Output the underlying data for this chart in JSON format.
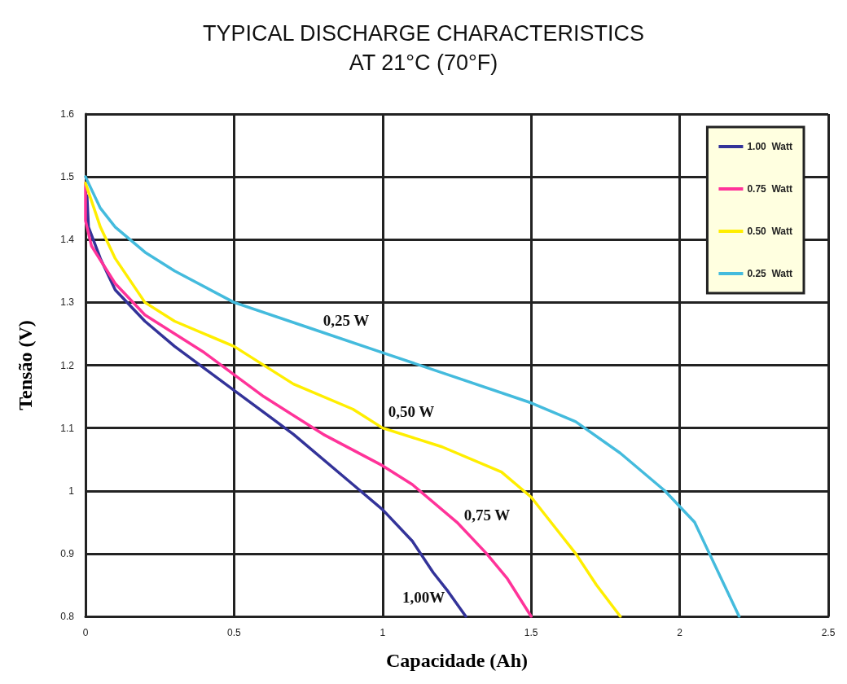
{
  "chart_data": {
    "type": "line",
    "title": "TYPICAL DISCHARGE CHARACTERISTICS\nAT 21°C (70°F)",
    "xlabel": "Capacidade (Ah)",
    "ylabel": "Tensão (V)",
    "xlim": [
      0,
      2.5
    ],
    "xticks": [
      0,
      0.5,
      1,
      1.5,
      2,
      2.5
    ],
    "ylim": [
      0.8,
      1.6
    ],
    "yticks": [
      0.8,
      0.9,
      1,
      1.1,
      1.2,
      1.3,
      1.4,
      1.5,
      1.6
    ],
    "grid": true,
    "legend": "top right",
    "marker": "none",
    "line_style": "solid",
    "series": [
      {
        "name": "1.00  Watt",
        "color": "#333399",
        "x": [
          0.005,
          0.01,
          0.05,
          0.1,
          0.2,
          0.3,
          0.5,
          0.7,
          0.9,
          1.0,
          1.1,
          1.17,
          1.22,
          1.28
        ],
        "values": [
          1.47,
          1.42,
          1.37,
          1.32,
          1.27,
          1.23,
          1.16,
          1.09,
          1.01,
          0.97,
          0.92,
          0.87,
          0.84,
          0.8
        ]
      },
      {
        "name": "0.75  Watt",
        "color": "#ff3399",
        "x": [
          0,
          0,
          0.02,
          0.1,
          0.2,
          0.4,
          0.6,
          0.8,
          1.0,
          1.1,
          1.25,
          1.35,
          1.42,
          1.5
        ],
        "values": [
          1.49,
          1.43,
          1.39,
          1.33,
          1.28,
          1.22,
          1.15,
          1.09,
          1.04,
          1.01,
          0.95,
          0.9,
          0.86,
          0.8
        ]
      },
      {
        "name": "0.50  Watt",
        "color": "#ffee00",
        "x": [
          0,
          0.05,
          0.1,
          0.2,
          0.3,
          0.5,
          0.7,
          0.9,
          1.0,
          1.2,
          1.4,
          1.5,
          1.6,
          1.65,
          1.72,
          1.8
        ],
        "values": [
          1.49,
          1.42,
          1.37,
          1.3,
          1.27,
          1.23,
          1.17,
          1.13,
          1.1,
          1.07,
          1.03,
          0.99,
          0.93,
          0.9,
          0.85,
          0.8
        ]
      },
      {
        "name": "0.25  Watt",
        "color": "#44bbdd",
        "x": [
          0,
          0.05,
          0.1,
          0.2,
          0.3,
          0.5,
          0.75,
          1.0,
          1.25,
          1.5,
          1.65,
          1.8,
          1.95,
          2.05,
          2.1,
          2.15,
          2.2
        ],
        "values": [
          1.5,
          1.45,
          1.42,
          1.38,
          1.35,
          1.3,
          1.26,
          1.22,
          1.18,
          1.14,
          1.11,
          1.06,
          1.0,
          0.95,
          0.9,
          0.85,
          0.8
        ]
      }
    ],
    "annotations": [
      "0,25 W",
      "0,50 W",
      "0,75 W",
      "1,00W"
    ]
  }
}
